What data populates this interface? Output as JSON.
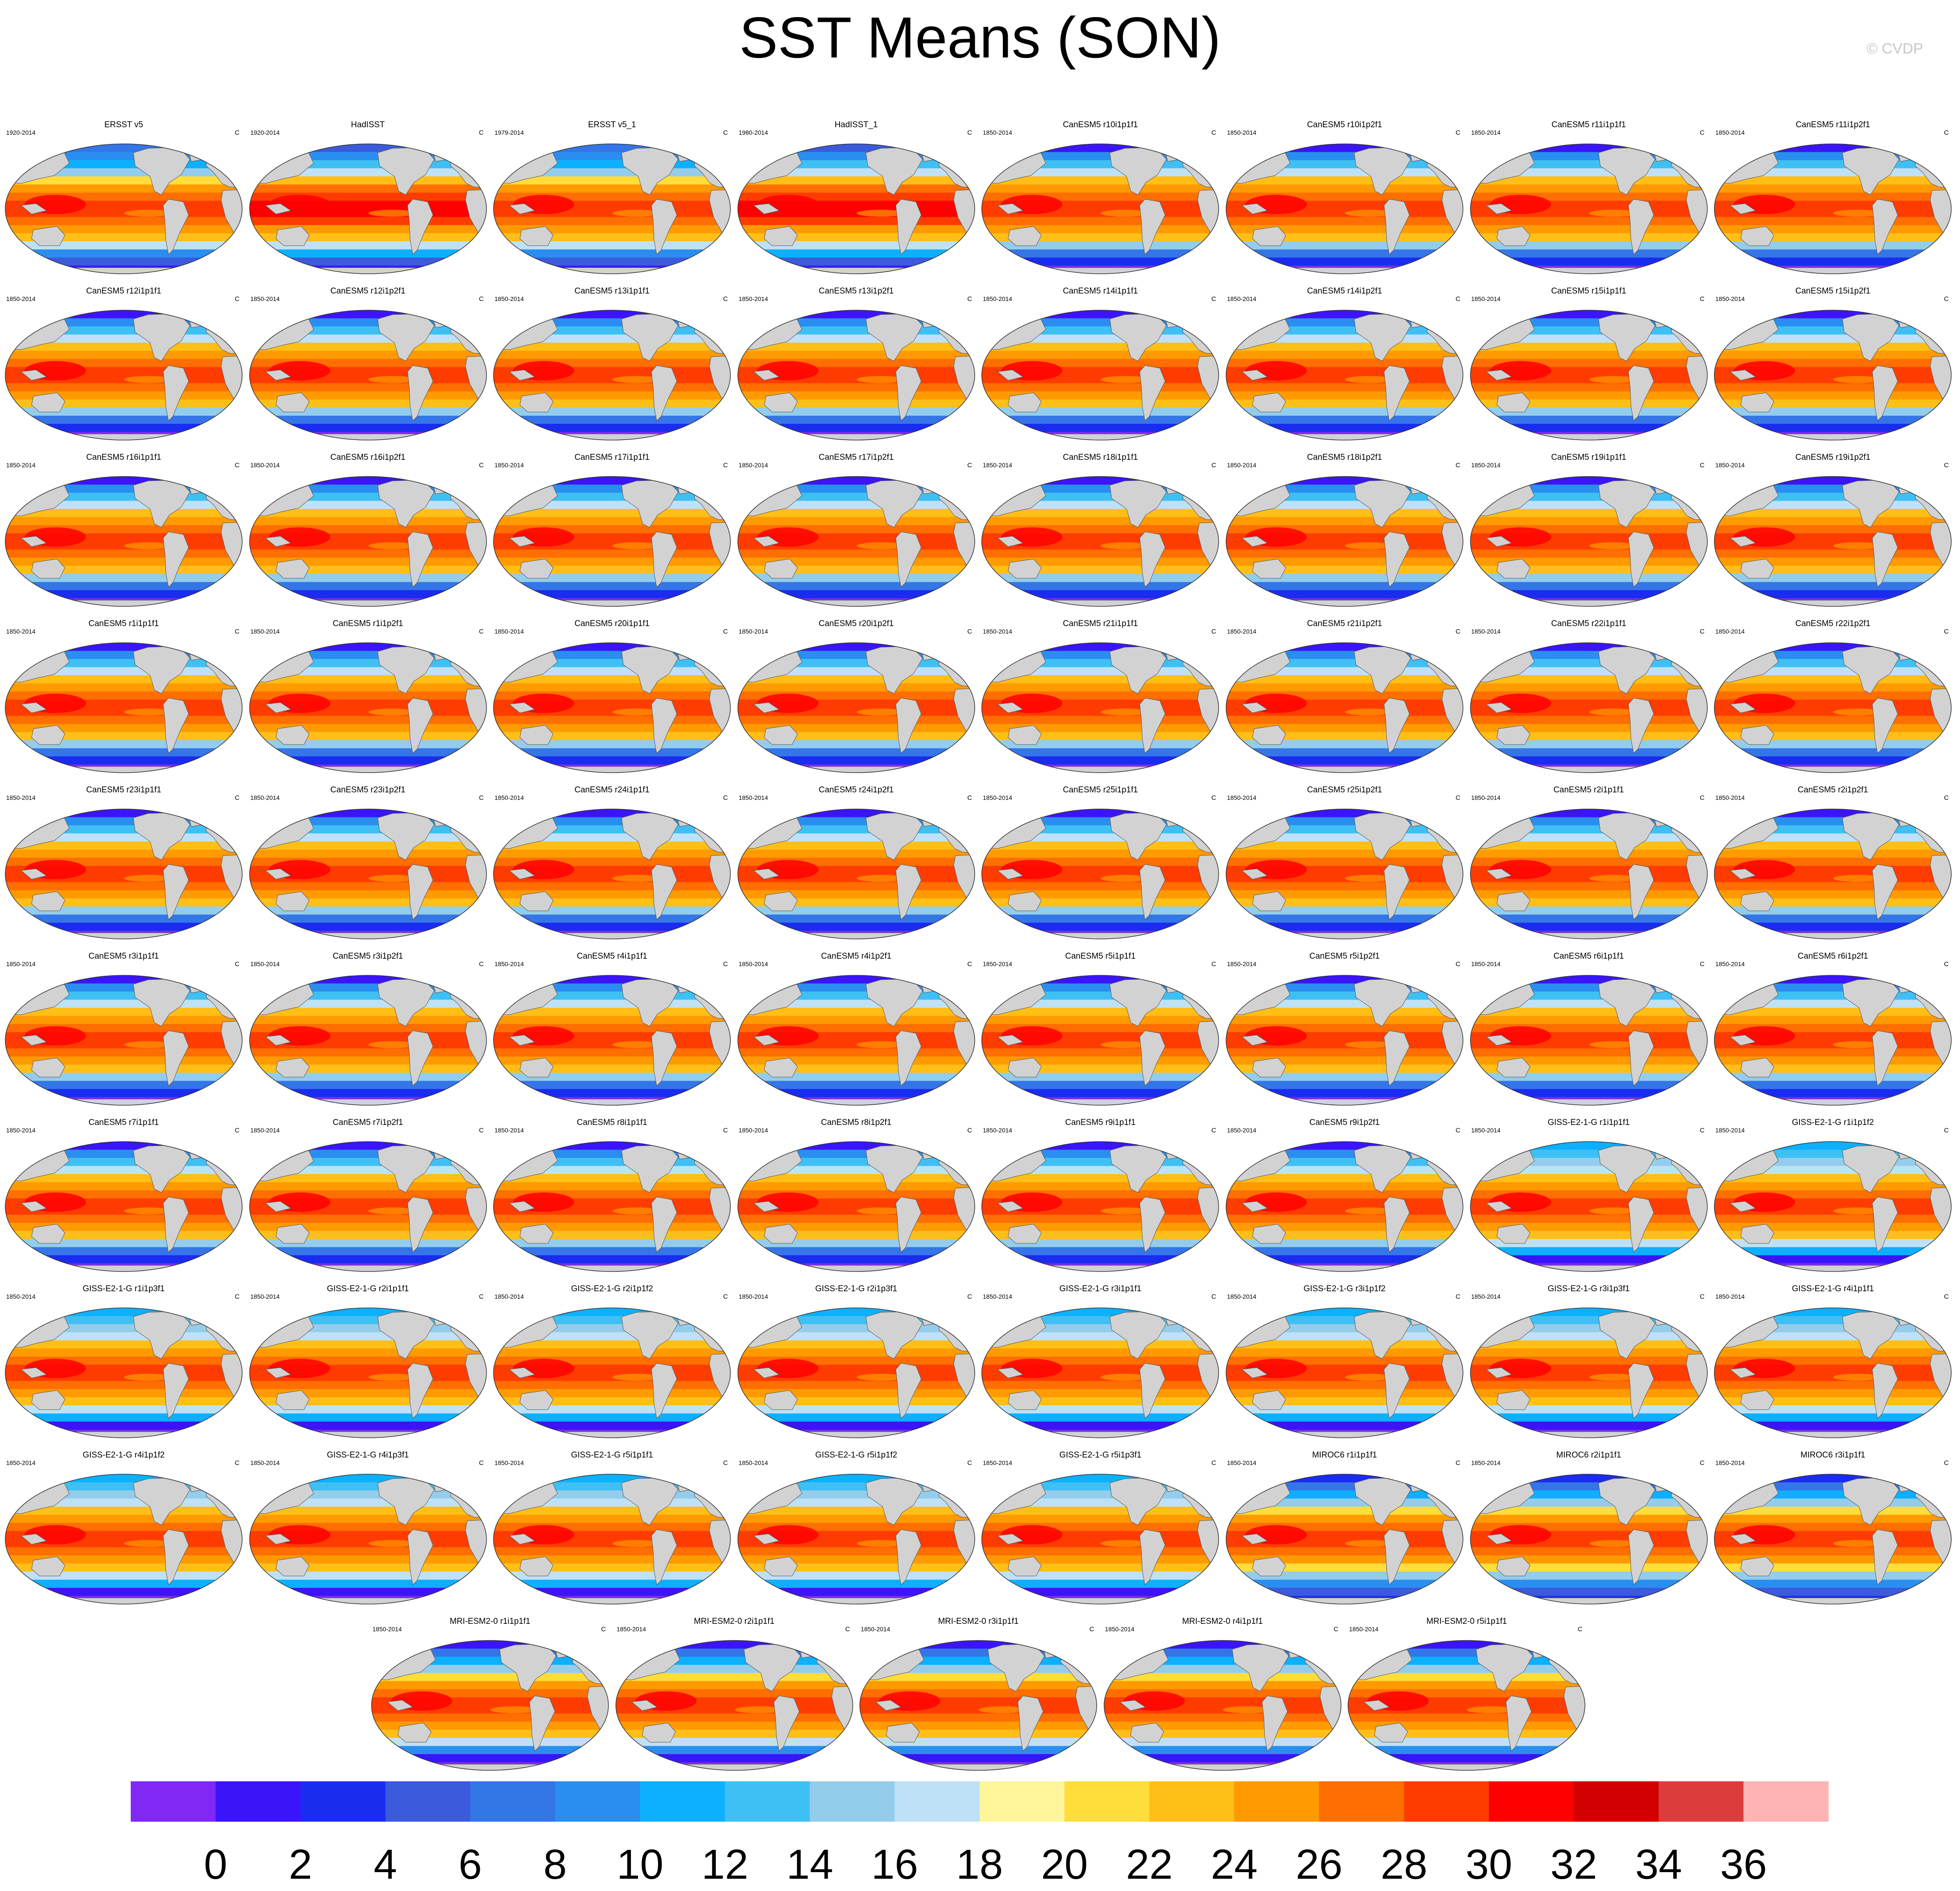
{
  "title": "SST Means (SON)",
  "credit": "© CVDP",
  "chart_data": {
    "type": "heatmap",
    "title": "SST Means (SON)",
    "units": "C",
    "colorbar": {
      "labels": [
        "0",
        "2",
        "4",
        "6",
        "8",
        "10",
        "12",
        "14",
        "16",
        "18",
        "20",
        "22",
        "24",
        "26",
        "28",
        "30",
        "32",
        "34",
        "36"
      ],
      "colors": [
        "#8128f5",
        "#3c14fa",
        "#1a2cf0",
        "#3b5adc",
        "#3475e8",
        "#2a8ef0",
        "#0cb0ff",
        "#3ec0f5",
        "#94cdeb",
        "#bfe1f5",
        "#fff59a",
        "#ffdd3a",
        "#ffbf16",
        "#ff9a00",
        "#ff6e00",
        "#ff3c00",
        "#ff0000",
        "#d20000",
        "#dc3c3c",
        "#ffb4b4"
      ]
    },
    "panels": [
      {
        "name": "ERSST v5",
        "period": "1920-2014",
        "style": "obs1"
      },
      {
        "name": "HadISST",
        "period": "1920-2014",
        "style": "obs2"
      },
      {
        "name": "ERSST v5_1",
        "period": "1979-2014",
        "style": "obs1"
      },
      {
        "name": "HadISST_1",
        "period": "1980-2014",
        "style": "obs2"
      },
      {
        "name": "CanESM5 r10i1p1f1",
        "period": "1850-2014",
        "style": "can"
      },
      {
        "name": "CanESM5 r10i1p2f1",
        "period": "1850-2014",
        "style": "can"
      },
      {
        "name": "CanESM5 r11i1p1f1",
        "period": "1850-2014",
        "style": "can"
      },
      {
        "name": "CanESM5 r11i1p2f1",
        "period": "1850-2014",
        "style": "can"
      },
      {
        "name": "CanESM5 r12i1p1f1",
        "period": "1850-2014",
        "style": "can"
      },
      {
        "name": "CanESM5 r12i1p2f1",
        "period": "1850-2014",
        "style": "can"
      },
      {
        "name": "CanESM5 r13i1p1f1",
        "period": "1850-2014",
        "style": "can"
      },
      {
        "name": "CanESM5 r13i1p2f1",
        "period": "1850-2014",
        "style": "can"
      },
      {
        "name": "CanESM5 r14i1p1f1",
        "period": "1850-2014",
        "style": "can"
      },
      {
        "name": "CanESM5 r14i1p2f1",
        "period": "1850-2014",
        "style": "can"
      },
      {
        "name": "CanESM5 r15i1p1f1",
        "period": "1850-2014",
        "style": "can"
      },
      {
        "name": "CanESM5 r15i1p2f1",
        "period": "1850-2014",
        "style": "can"
      },
      {
        "name": "CanESM5 r16i1p1f1",
        "period": "1850-2014",
        "style": "can"
      },
      {
        "name": "CanESM5 r16i1p2f1",
        "period": "1850-2014",
        "style": "can"
      },
      {
        "name": "CanESM5 r17i1p1f1",
        "period": "1850-2014",
        "style": "can"
      },
      {
        "name": "CanESM5 r17i1p2f1",
        "period": "1850-2014",
        "style": "can"
      },
      {
        "name": "CanESM5 r18i1p1f1",
        "period": "1850-2014",
        "style": "can"
      },
      {
        "name": "CanESM5 r18i1p2f1",
        "period": "1850-2014",
        "style": "can"
      },
      {
        "name": "CanESM5 r19i1p1f1",
        "period": "1850-2014",
        "style": "can"
      },
      {
        "name": "CanESM5 r19i1p2f1",
        "period": "1850-2014",
        "style": "can"
      },
      {
        "name": "CanESM5 r1i1p1f1",
        "period": "1850-2014",
        "style": "can"
      },
      {
        "name": "CanESM5 r1i1p2f1",
        "period": "1850-2014",
        "style": "can"
      },
      {
        "name": "CanESM5 r20i1p1f1",
        "period": "1850-2014",
        "style": "can"
      },
      {
        "name": "CanESM5 r20i1p2f1",
        "period": "1850-2014",
        "style": "can"
      },
      {
        "name": "CanESM5 r21i1p1f1",
        "period": "1850-2014",
        "style": "can"
      },
      {
        "name": "CanESM5 r21i1p2f1",
        "period": "1850-2014",
        "style": "can"
      },
      {
        "name": "CanESM5 r22i1p1f1",
        "period": "1850-2014",
        "style": "can"
      },
      {
        "name": "CanESM5 r22i1p2f1",
        "period": "1850-2014",
        "style": "can"
      },
      {
        "name": "CanESM5 r23i1p1f1",
        "period": "1850-2014",
        "style": "can"
      },
      {
        "name": "CanESM5 r23i1p2f1",
        "period": "1850-2014",
        "style": "can"
      },
      {
        "name": "CanESM5 r24i1p1f1",
        "period": "1850-2014",
        "style": "can"
      },
      {
        "name": "CanESM5 r24i1p2f1",
        "period": "1850-2014",
        "style": "can"
      },
      {
        "name": "CanESM5 r25i1p1f1",
        "period": "1850-2014",
        "style": "can"
      },
      {
        "name": "CanESM5 r25i1p2f1",
        "period": "1850-2014",
        "style": "can"
      },
      {
        "name": "CanESM5 r2i1p1f1",
        "period": "1850-2014",
        "style": "can"
      },
      {
        "name": "CanESM5 r2i1p2f1",
        "period": "1850-2014",
        "style": "can"
      },
      {
        "name": "CanESM5 r3i1p1f1",
        "period": "1850-2014",
        "style": "can"
      },
      {
        "name": "CanESM5 r3i1p2f1",
        "period": "1850-2014",
        "style": "can"
      },
      {
        "name": "CanESM5 r4i1p1f1",
        "period": "1850-2014",
        "style": "can"
      },
      {
        "name": "CanESM5 r4i1p2f1",
        "period": "1850-2014",
        "style": "can"
      },
      {
        "name": "CanESM5 r5i1p1f1",
        "period": "1850-2014",
        "style": "can"
      },
      {
        "name": "CanESM5 r5i1p2f1",
        "period": "1850-2014",
        "style": "can"
      },
      {
        "name": "CanESM5 r6i1p1f1",
        "period": "1850-2014",
        "style": "can"
      },
      {
        "name": "CanESM5 r6i1p2f1",
        "period": "1850-2014",
        "style": "can"
      },
      {
        "name": "CanESM5 r7i1p1f1",
        "period": "1850-2014",
        "style": "can"
      },
      {
        "name": "CanESM5 r7i1p2f1",
        "period": "1850-2014",
        "style": "can"
      },
      {
        "name": "CanESM5 r8i1p1f1",
        "period": "1850-2014",
        "style": "can"
      },
      {
        "name": "CanESM5 r8i1p2f1",
        "period": "1850-2014",
        "style": "can"
      },
      {
        "name": "CanESM5 r9i1p1f1",
        "period": "1850-2014",
        "style": "can"
      },
      {
        "name": "CanESM5 r9i1p2f1",
        "period": "1850-2014",
        "style": "can"
      },
      {
        "name": "GISS-E2-1-G r1i1p1f1",
        "period": "1850-2014",
        "style": "giss"
      },
      {
        "name": "GISS-E2-1-G r1i1p1f2",
        "period": "1850-2014",
        "style": "giss"
      },
      {
        "name": "GISS-E2-1-G r1i1p3f1",
        "period": "1850-2014",
        "style": "giss"
      },
      {
        "name": "GISS-E2-1-G r2i1p1f1",
        "period": "1850-2014",
        "style": "giss"
      },
      {
        "name": "GISS-E2-1-G r2i1p1f2",
        "period": "1850-2014",
        "style": "giss"
      },
      {
        "name": "GISS-E2-1-G r2i1p3f1",
        "period": "1850-2014",
        "style": "giss"
      },
      {
        "name": "GISS-E2-1-G r3i1p1f1",
        "period": "1850-2014",
        "style": "giss"
      },
      {
        "name": "GISS-E2-1-G r3i1p1f2",
        "period": "1850-2014",
        "style": "giss"
      },
      {
        "name": "GISS-E2-1-G r3i1p3f1",
        "period": "1850-2014",
        "style": "giss"
      },
      {
        "name": "GISS-E2-1-G r4i1p1f1",
        "period": "1850-2014",
        "style": "giss"
      },
      {
        "name": "GISS-E2-1-G r4i1p1f2",
        "period": "1850-2014",
        "style": "giss"
      },
      {
        "name": "GISS-E2-1-G r4i1p3f1",
        "period": "1850-2014",
        "style": "giss"
      },
      {
        "name": "GISS-E2-1-G r5i1p1f1",
        "period": "1850-2014",
        "style": "giss"
      },
      {
        "name": "GISS-E2-1-G r5i1p1f2",
        "period": "1850-2014",
        "style": "giss"
      },
      {
        "name": "GISS-E2-1-G r5i1p3f1",
        "period": "1850-2014",
        "style": "giss"
      },
      {
        "name": "MIROC6 r1i1p1f1",
        "period": "1850-2014",
        "style": "miroc"
      },
      {
        "name": "MIROC6 r2i1p1f1",
        "period": "1850-2014",
        "style": "miroc"
      },
      {
        "name": "MIROC6 r3i1p1f1",
        "period": "1850-2014",
        "style": "miroc"
      },
      {
        "name": "MRI-ESM2-0 r1i1p1f1",
        "period": "1850-2014",
        "style": "mri"
      },
      {
        "name": "MRI-ESM2-0 r2i1p1f1",
        "period": "1850-2014",
        "style": "mri"
      },
      {
        "name": "MRI-ESM2-0 r3i1p1f1",
        "period": "1850-2014",
        "style": "mri"
      },
      {
        "name": "MRI-ESM2-0 r4i1p1f1",
        "period": "1850-2014",
        "style": "mri"
      },
      {
        "name": "MRI-ESM2-0 r5i1p1f1",
        "period": "1850-2014",
        "style": "mri"
      }
    ]
  }
}
